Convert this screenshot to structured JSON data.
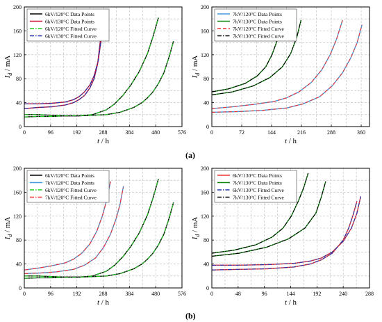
{
  "panel_labels": [
    "(a)",
    "(b)"
  ],
  "chart_data": [
    {
      "type": "line",
      "xlabel": "t / h",
      "ylabel": "I_d / mA",
      "xlim": [
        0,
        576
      ],
      "ylim": [
        0,
        200
      ],
      "xticks": [
        "0",
        "96",
        "192",
        "288",
        "384",
        "480",
        "576"
      ],
      "yticks": [
        "0",
        "40",
        "80",
        "120",
        "160",
        "200"
      ],
      "grid": true,
      "legend_position": "top-left",
      "series": [
        {
          "name": "6kV/120°C Data Points",
          "color": "#000000",
          "style": "solid",
          "x": [
            0,
            50,
            100,
            150,
            200,
            250,
            300,
            350,
            400,
            430,
            450,
            470,
            490,
            510,
            530,
            545
          ],
          "values": [
            20,
            20,
            19,
            18,
            18,
            19,
            20,
            24,
            32,
            40,
            48,
            58,
            72,
            90,
            118,
            143
          ]
        },
        {
          "name": "6kV/130°C Data Points",
          "color": "#cc1133",
          "style": "solid",
          "x": [
            0,
            50,
            100,
            150,
            180,
            200,
            220,
            240,
            255,
            268,
            280
          ],
          "values": [
            30,
            32,
            33,
            36,
            40,
            45,
            52,
            65,
            80,
            105,
            152
          ]
        },
        {
          "name": "6kV/120°C Fitted Curve",
          "color": "#22cc22",
          "style": "dashdot",
          "x": [
            0,
            50,
            100,
            150,
            200,
            250,
            300,
            350,
            400,
            430,
            450,
            470,
            490,
            510,
            530,
            545
          ],
          "values": [
            20,
            20,
            19,
            18,
            18,
            19,
            20,
            24,
            32,
            40,
            48,
            58,
            72,
            90,
            118,
            143
          ]
        },
        {
          "name": "6kV/130°C Fitted Curve",
          "color": "#2233aa",
          "style": "dashdot",
          "x": [
            0,
            50,
            100,
            150,
            180,
            200,
            220,
            240,
            255,
            268,
            280
          ],
          "values": [
            30,
            32,
            33,
            36,
            40,
            45,
            52,
            65,
            80,
            105,
            152
          ]
        },
        {
          "name": "",
          "color": "#000000",
          "style": "solid",
          "x": [
            0,
            50,
            100,
            150,
            200,
            250,
            300,
            330,
            360,
            390,
            420,
            450,
            470,
            490
          ],
          "values": [
            16,
            17,
            17,
            18,
            18,
            20,
            28,
            38,
            52,
            70,
            92,
            122,
            150,
            182
          ]
        },
        {
          "name": "",
          "color": "#22cc22",
          "style": "dashdot",
          "x": [
            0,
            50,
            100,
            150,
            200,
            250,
            300,
            330,
            360,
            390,
            420,
            450,
            470,
            490
          ],
          "values": [
            16,
            17,
            17,
            18,
            18,
            20,
            28,
            38,
            52,
            70,
            92,
            122,
            150,
            182
          ]
        },
        {
          "name": "",
          "color": "#cc1133",
          "style": "solid",
          "x": [
            0,
            50,
            100,
            150,
            180,
            200,
            220,
            240,
            255,
            270,
            283
          ],
          "values": [
            38,
            38,
            39,
            41,
            45,
            50,
            58,
            70,
            85,
            110,
            152
          ]
        },
        {
          "name": "",
          "color": "#2233aa",
          "style": "dashdot",
          "x": [
            0,
            50,
            100,
            150,
            180,
            200,
            220,
            240,
            255,
            270,
            283
          ],
          "values": [
            38,
            38,
            39,
            41,
            45,
            50,
            58,
            70,
            85,
            110,
            152
          ]
        }
      ]
    },
    {
      "type": "line",
      "xlabel": "t / h",
      "ylabel": "I_d / mA",
      "xlim": [
        0,
        380
      ],
      "ylim": [
        0,
        200
      ],
      "xticks": [
        "0",
        "72",
        "144",
        "216",
        "288",
        "360"
      ],
      "yticks": [
        "0",
        "40",
        "80",
        "120",
        "160",
        "200"
      ],
      "grid": true,
      "legend_position": "top-left",
      "series": [
        {
          "name": "7kV/120°C Data Points",
          "color": "#4499dd",
          "style": "solid",
          "x": [
            0,
            50,
            100,
            150,
            180,
            210,
            240,
            265,
            285,
            300,
            315
          ],
          "values": [
            30,
            33,
            37,
            42,
            48,
            58,
            74,
            95,
            120,
            145,
            178
          ]
        },
        {
          "name": "7kV/130°C Data Points",
          "color": "#118811",
          "style": "solid",
          "x": [
            0,
            40,
            80,
            110,
            130,
            145,
            158,
            168,
            176
          ],
          "values": [
            58,
            63,
            72,
            85,
            100,
            120,
            145,
            168,
            192
          ]
        },
        {
          "name": "7kV/120°C Fitted Curve",
          "color": "#ee3333",
          "style": "dashed",
          "x": [
            0,
            50,
            100,
            150,
            180,
            210,
            240,
            265,
            285,
            300,
            315
          ],
          "values": [
            30,
            33,
            37,
            42,
            48,
            58,
            74,
            95,
            120,
            145,
            178
          ]
        },
        {
          "name": "7kV/130°C Fitted Curve",
          "color": "#000000",
          "style": "dashdot",
          "x": [
            0,
            40,
            80,
            110,
            130,
            145,
            158,
            168,
            176
          ],
          "values": [
            58,
            63,
            72,
            85,
            100,
            120,
            145,
            168,
            192
          ]
        },
        {
          "name": "",
          "color": "#4499dd",
          "style": "solid",
          "x": [
            0,
            60,
            120,
            180,
            220,
            260,
            290,
            315,
            335,
            350,
            362
          ],
          "values": [
            24,
            25,
            27,
            31,
            38,
            50,
            68,
            90,
            115,
            140,
            170
          ]
        },
        {
          "name": "",
          "color": "#ee3333",
          "style": "dashed",
          "x": [
            0,
            60,
            120,
            180,
            220,
            260,
            290,
            315,
            335,
            350,
            362
          ],
          "values": [
            24,
            25,
            27,
            31,
            38,
            50,
            68,
            90,
            115,
            140,
            170
          ]
        },
        {
          "name": "",
          "color": "#118811",
          "style": "solid",
          "x": [
            0,
            50,
            100,
            140,
            170,
            190,
            205,
            215
          ],
          "values": [
            53,
            58,
            68,
            82,
            100,
            122,
            150,
            178
          ]
        },
        {
          "name": "",
          "color": "#000000",
          "style": "dashdot",
          "x": [
            0,
            50,
            100,
            140,
            170,
            190,
            205,
            215
          ],
          "values": [
            53,
            58,
            68,
            82,
            100,
            122,
            150,
            178
          ]
        }
      ]
    },
    {
      "type": "line",
      "xlabel": "t / h",
      "ylabel": "I_d / mA",
      "xlim": [
        0,
        576
      ],
      "ylim": [
        0,
        200
      ],
      "xticks": [
        "0",
        "96",
        "192",
        "288",
        "384",
        "480",
        "576"
      ],
      "yticks": [
        "0",
        "40",
        "80",
        "120",
        "160",
        "200"
      ],
      "grid": true,
      "legend_position": "top-left",
      "series": [
        {
          "name": "6kV/120°C Data Points",
          "color": "#000000",
          "style": "solid",
          "x": [
            0,
            50,
            100,
            150,
            200,
            250,
            300,
            330,
            360,
            390,
            420,
            450,
            470,
            490
          ],
          "values": [
            16,
            17,
            17,
            18,
            18,
            20,
            28,
            38,
            52,
            70,
            92,
            122,
            150,
            182
          ]
        },
        {
          "name": "7kV/120°C Data Points",
          "color": "#4499dd",
          "style": "solid",
          "x": [
            0,
            50,
            100,
            150,
            180,
            210,
            240,
            265,
            285,
            300,
            315
          ],
          "values": [
            30,
            33,
            37,
            42,
            48,
            58,
            74,
            95,
            120,
            145,
            178
          ]
        },
        {
          "name": "6kV/120°C Fitted Curve",
          "color": "#22cc22",
          "style": "dashdot",
          "x": [
            0,
            50,
            100,
            150,
            200,
            250,
            300,
            330,
            360,
            390,
            420,
            450,
            470,
            490
          ],
          "values": [
            16,
            17,
            17,
            18,
            18,
            20,
            28,
            38,
            52,
            70,
            92,
            122,
            150,
            182
          ]
        },
        {
          "name": "7kV/120°C Fitted Curve",
          "color": "#ee3333",
          "style": "dashdot",
          "x": [
            0,
            50,
            100,
            150,
            180,
            210,
            240,
            265,
            285,
            300,
            315
          ],
          "values": [
            30,
            33,
            37,
            42,
            48,
            58,
            74,
            95,
            120,
            145,
            178
          ]
        },
        {
          "name": "",
          "color": "#000000",
          "style": "solid",
          "x": [
            0,
            50,
            100,
            150,
            200,
            250,
            300,
            350,
            400,
            430,
            450,
            470,
            490,
            510,
            530,
            545
          ],
          "values": [
            20,
            20,
            19,
            18,
            18,
            19,
            20,
            24,
            32,
            40,
            48,
            58,
            72,
            90,
            118,
            143
          ]
        },
        {
          "name": "",
          "color": "#22cc22",
          "style": "dashdot",
          "x": [
            0,
            50,
            100,
            150,
            200,
            250,
            300,
            350,
            400,
            430,
            450,
            470,
            490,
            510,
            530,
            545
          ],
          "values": [
            20,
            20,
            19,
            18,
            18,
            19,
            20,
            24,
            32,
            40,
            48,
            58,
            72,
            90,
            118,
            143
          ]
        },
        {
          "name": "",
          "color": "#4499dd",
          "style": "solid",
          "x": [
            0,
            60,
            120,
            180,
            220,
            260,
            290,
            315,
            335,
            350,
            362
          ],
          "values": [
            24,
            25,
            27,
            31,
            38,
            50,
            68,
            90,
            115,
            140,
            170
          ]
        },
        {
          "name": "",
          "color": "#ee3333",
          "style": "dashdot",
          "x": [
            0,
            60,
            120,
            180,
            220,
            260,
            290,
            315,
            335,
            350,
            362
          ],
          "values": [
            24,
            25,
            27,
            31,
            38,
            50,
            68,
            90,
            115,
            140,
            170
          ]
        }
      ]
    },
    {
      "type": "line",
      "xlabel": "t / h",
      "ylabel": "I_d / mA",
      "xlim": [
        0,
        288
      ],
      "ylim": [
        0,
        200
      ],
      "xticks": [
        "0",
        "48",
        "96",
        "144",
        "192",
        "240",
        "288"
      ],
      "yticks": [
        "0",
        "40",
        "80",
        "120",
        "160",
        "200"
      ],
      "grid": true,
      "legend_position": "top-left",
      "series": [
        {
          "name": "6kV/130°C Data Points",
          "color": "#ee3333",
          "style": "solid",
          "x": [
            0,
            50,
            100,
            150,
            180,
            200,
            220,
            240,
            255,
            265,
            272
          ],
          "values": [
            38,
            38,
            39,
            41,
            45,
            50,
            60,
            78,
            100,
            125,
            153
          ]
        },
        {
          "name": "7kV/130°C Data Points",
          "color": "#118811",
          "style": "solid",
          "x": [
            0,
            40,
            80,
            110,
            130,
            145,
            158,
            168,
            176
          ],
          "values": [
            58,
            63,
            72,
            85,
            100,
            120,
            145,
            168,
            192
          ]
        },
        {
          "name": "6kV/130°C Fitted Curve",
          "color": "#2233aa",
          "style": "dashdot",
          "x": [
            0,
            50,
            100,
            150,
            180,
            200,
            220,
            240,
            255,
            265,
            272
          ],
          "values": [
            38,
            38,
            39,
            41,
            45,
            50,
            60,
            78,
            100,
            125,
            153
          ]
        },
        {
          "name": "7kV/130°C Fitted Curve",
          "color": "#000000",
          "style": "dashdot",
          "x": [
            0,
            40,
            80,
            110,
            130,
            145,
            158,
            168,
            176
          ],
          "values": [
            58,
            63,
            72,
            85,
            100,
            120,
            145,
            168,
            192
          ]
        },
        {
          "name": "",
          "color": "#ee3333",
          "style": "solid",
          "x": [
            0,
            50,
            100,
            150,
            180,
            200,
            220,
            240,
            250,
            258,
            265
          ],
          "values": [
            30,
            31,
            32,
            35,
            40,
            47,
            58,
            80,
            100,
            122,
            145
          ]
        },
        {
          "name": "",
          "color": "#2233aa",
          "style": "dashdot",
          "x": [
            0,
            50,
            100,
            150,
            180,
            200,
            220,
            240,
            250,
            258,
            265
          ],
          "values": [
            30,
            31,
            32,
            35,
            40,
            47,
            58,
            80,
            100,
            122,
            145
          ]
        },
        {
          "name": "",
          "color": "#118811",
          "style": "solid",
          "x": [
            0,
            50,
            100,
            140,
            170,
            190,
            200,
            208
          ],
          "values": [
            53,
            58,
            68,
            82,
            100,
            125,
            152,
            178
          ]
        },
        {
          "name": "",
          "color": "#000000",
          "style": "dashdot",
          "x": [
            0,
            50,
            100,
            140,
            170,
            190,
            200,
            208
          ],
          "values": [
            53,
            58,
            68,
            82,
            100,
            125,
            152,
            178
          ]
        }
      ]
    }
  ]
}
